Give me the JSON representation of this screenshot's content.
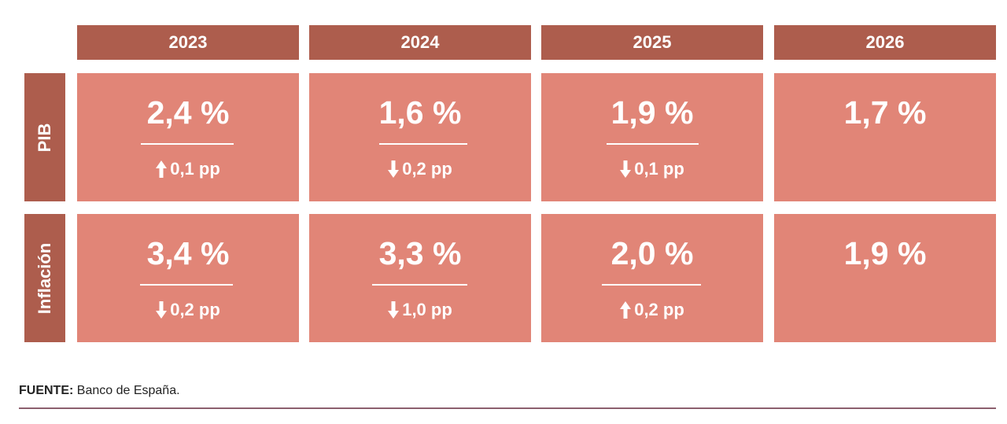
{
  "chart_data": {
    "type": "table",
    "columns": [
      "2023",
      "2024",
      "2025",
      "2026"
    ],
    "rows": [
      {
        "label": "PIB",
        "cells": [
          {
            "value": "2,4 %",
            "change": "0,1 pp",
            "direction": "up"
          },
          {
            "value": "1,6 %",
            "change": "0,2 pp",
            "direction": "down"
          },
          {
            "value": "1,9 %",
            "change": "0,1 pp",
            "direction": "down"
          },
          {
            "value": "1,7 %",
            "change": "",
            "direction": ""
          }
        ]
      },
      {
        "label": "Inflación",
        "cells": [
          {
            "value": "3,4 %",
            "change": "0,2 pp",
            "direction": "down"
          },
          {
            "value": "3,3 %",
            "change": "1,0 pp",
            "direction": "down"
          },
          {
            "value": "2,0 %",
            "change": "0,2 pp",
            "direction": "up"
          },
          {
            "value": "1,9 %",
            "change": "",
            "direction": ""
          }
        ]
      }
    ]
  },
  "source": {
    "label": "FUENTE:",
    "text": "Banco de España."
  },
  "colors": {
    "header": "#ad5d4d",
    "cell": "#e18577",
    "text": "#ffffff",
    "rule": "#8c5f6e"
  }
}
